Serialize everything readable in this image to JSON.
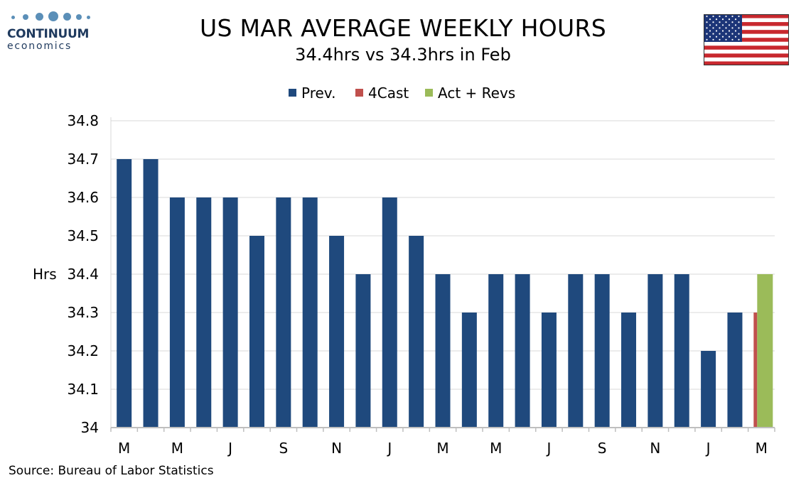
{
  "header": {
    "logo_brand": "CONTINUUM",
    "logo_sub": "economics",
    "title": "US MAR AVERAGE WEEKLY HOURS",
    "subtitle": "34.4hrs vs 34.3hrs in Feb",
    "flag_icon": "us-flag-icon"
  },
  "footer": {
    "source": "Source: Bureau of Labor Statistics"
  },
  "colors": {
    "prev": "#1f497d",
    "forecast": "#c0504d",
    "actual": "#9bbb59",
    "grid": "#d9d9d9"
  },
  "chart_data": {
    "type": "bar",
    "title": "US MAR AVERAGE WEEKLY HOURS",
    "subtitle": "34.4hrs vs 34.3hrs in Feb",
    "ylabel": "Hrs",
    "ylim": [
      34,
      34.8
    ],
    "yticks": [
      "34",
      "34.1",
      "34.2",
      "34.3",
      "34.4",
      "34.5",
      "34.6",
      "34.7",
      "34.8"
    ],
    "grid": true,
    "legend": {
      "placement": "top-center",
      "entries": [
        "Prev.",
        "4Cast",
        "Act + Revs"
      ]
    },
    "x_tick_labels": [
      "M",
      "",
      "M",
      "",
      "J",
      "",
      "S",
      "",
      "N",
      "",
      "J",
      "",
      "M",
      "",
      "M",
      "",
      "J",
      "",
      "S",
      "",
      "N",
      "",
      "J",
      "",
      "M"
    ],
    "series": [
      {
        "name": "Prev.",
        "values": [
          34.7,
          34.7,
          34.6,
          34.6,
          34.6,
          34.5,
          34.6,
          34.6,
          34.5,
          34.4,
          34.6,
          34.5,
          34.4,
          34.3,
          34.4,
          34.4,
          34.3,
          34.4,
          34.4,
          34.3,
          34.4,
          34.4,
          34.2,
          34.3,
          null
        ]
      },
      {
        "name": "4Cast",
        "values": [
          null,
          null,
          null,
          null,
          null,
          null,
          null,
          null,
          null,
          null,
          null,
          null,
          null,
          null,
          null,
          null,
          null,
          null,
          null,
          null,
          null,
          null,
          null,
          null,
          34.3
        ]
      },
      {
        "name": "Act + Revs",
        "values": [
          null,
          null,
          null,
          null,
          null,
          null,
          null,
          null,
          null,
          null,
          null,
          null,
          null,
          null,
          null,
          null,
          null,
          null,
          null,
          null,
          null,
          null,
          null,
          null,
          34.4
        ]
      }
    ]
  }
}
